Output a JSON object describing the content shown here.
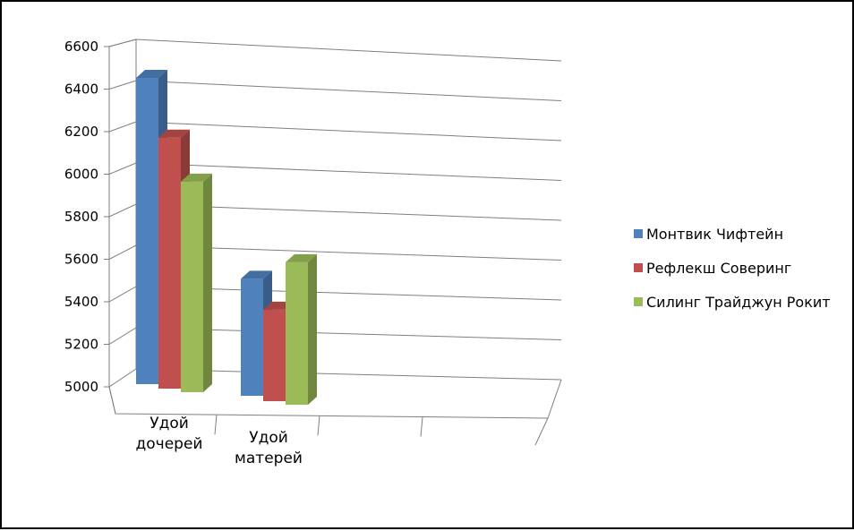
{
  "chart_data": {
    "type": "bar",
    "categories": [
      [
        "Удой",
        "дочерей"
      ],
      [
        "Удой",
        "матерей"
      ]
    ],
    "series": [
      {
        "name": "Монтвик Чифтейн",
        "values": [
          6440,
          5550
        ],
        "color": "#4f81bd"
      },
      {
        "name": "Рефлекш Соверинг",
        "values": [
          6180,
          5430
        ],
        "color": "#c0504d"
      },
      {
        "name": "Силинг Трайджун Рокит",
        "values": [
          5990,
          5670
        ],
        "color": "#9bbb59"
      }
    ],
    "ylim": [
      5000,
      6600
    ],
    "yticks": [
      5000,
      5200,
      5400,
      5600,
      5800,
      6000,
      6200,
      6400,
      6600
    ],
    "grid": true,
    "legend_position": "right",
    "three_d": true
  }
}
